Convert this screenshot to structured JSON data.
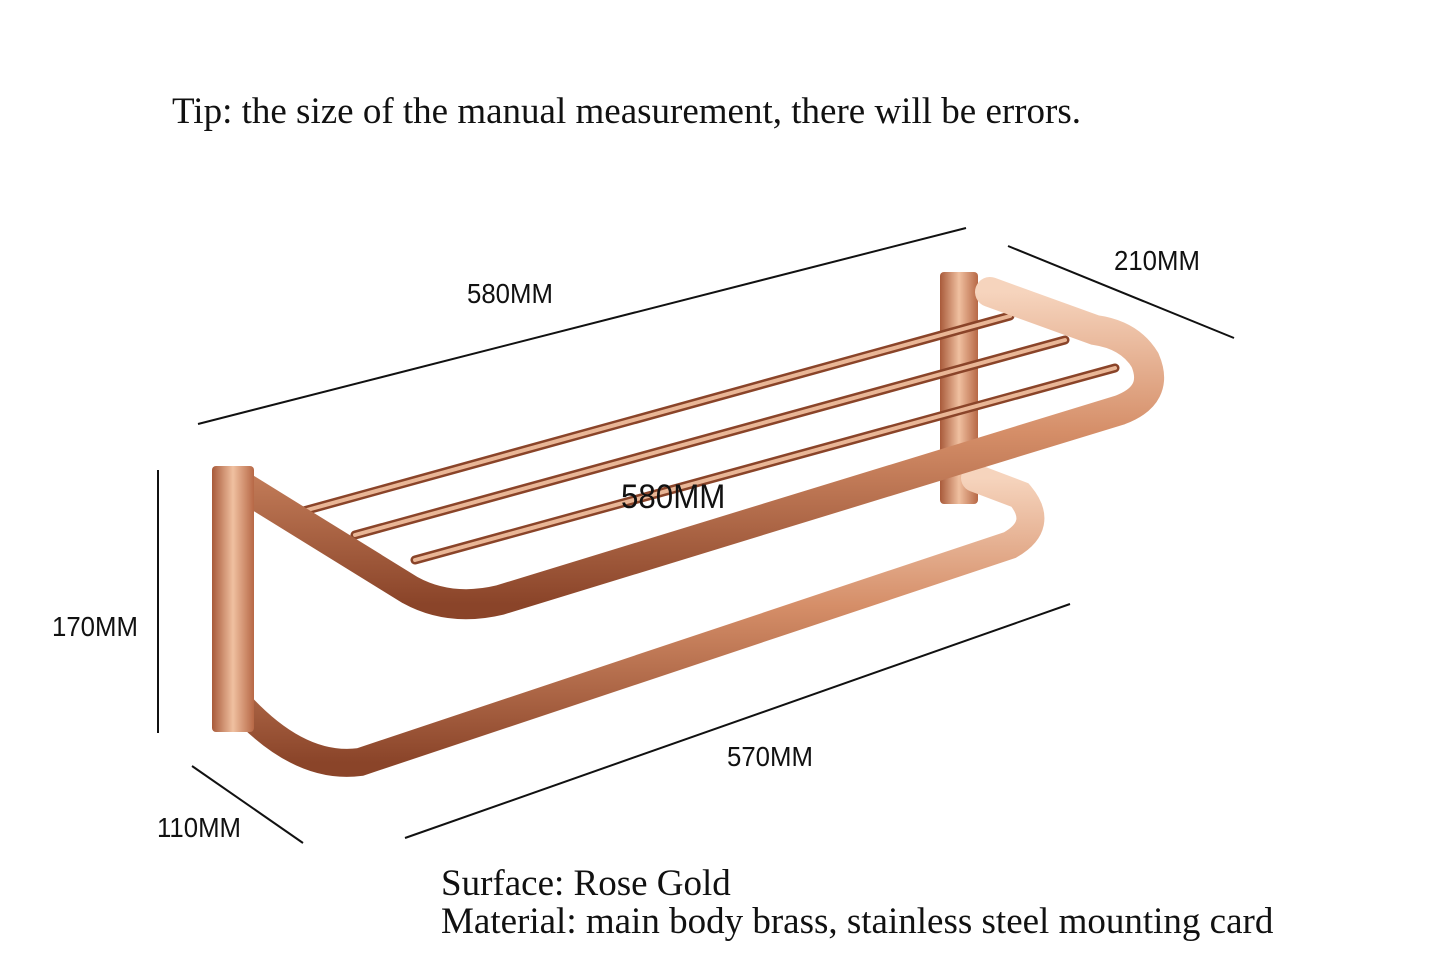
{
  "tip": "Tip: the size of the manual measurement, there will be errors.",
  "dimensions": {
    "length_top": "580MM",
    "depth_top": "210MM",
    "height": "170MM",
    "depth_bottom": "110MM",
    "length_bottom": "570MM",
    "overlay_label": "580MM"
  },
  "specs": {
    "surface": "Surface: Rose Gold",
    "material": "Material: main body brass, stainless steel mounting card"
  },
  "colors": {
    "rose_gold_light": "#f2c6a8",
    "rose_gold_mid": "#c97a55",
    "rose_gold_dark": "#7a3a22",
    "line": "#111111"
  }
}
